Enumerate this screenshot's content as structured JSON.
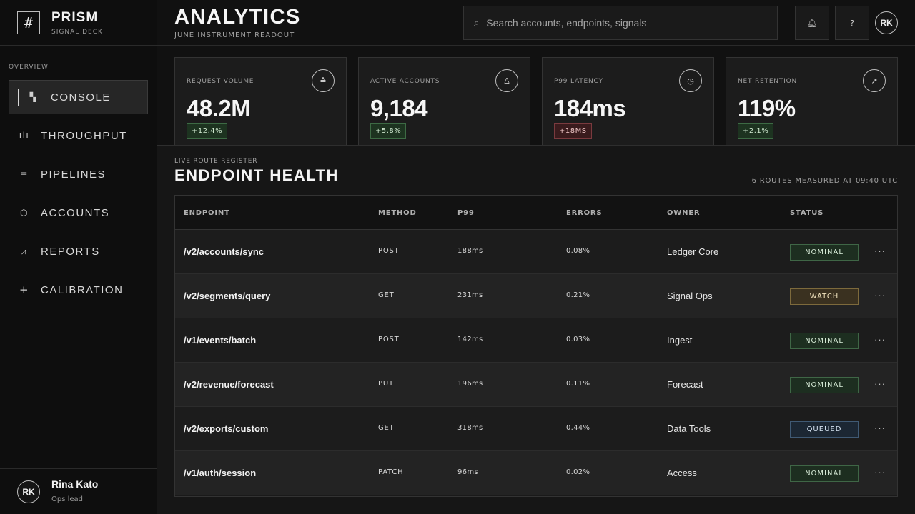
{
  "brand": {
    "name": "PRISM",
    "subtitle": "SIGNAL DECK"
  },
  "sidebar": {
    "section_label": "OVERVIEW",
    "items": [
      {
        "label": "CONSOLE",
        "icon": "grid-icon",
        "active": true
      },
      {
        "label": "THROUGHPUT",
        "icon": "bar-chart-icon",
        "active": false
      },
      {
        "label": "PIPELINES",
        "icon": "lines-icon",
        "active": false
      },
      {
        "label": "ACCOUNTS",
        "icon": "cube-icon",
        "active": false
      },
      {
        "label": "REPORTS",
        "icon": "trend-chart-icon",
        "active": false
      },
      {
        "label": "CALIBRATION",
        "icon": "plus-icon",
        "active": false
      }
    ]
  },
  "user": {
    "initials": "RK",
    "name": "Rina Kato",
    "role": "Ops lead"
  },
  "header": {
    "title": "ANALYTICS",
    "subtitle": "JUNE INSTRUMENT READOUT",
    "search_placeholder": "Search accounts, endpoints, signals",
    "avatar_initials": "RK"
  },
  "kpis": [
    {
      "label": "REQUEST VOLUME",
      "value": "48.2M",
      "delta": "+12.4%",
      "trend": "up",
      "icon": "stack-icon"
    },
    {
      "label": "ACTIVE ACCOUNTS",
      "value": "9,184",
      "delta": "+5.8%",
      "trend": "up",
      "icon": "user-icon"
    },
    {
      "label": "P99 LATENCY",
      "value": "184ms",
      "delta": "+18MS",
      "trend": "down",
      "icon": "clock-icon"
    },
    {
      "label": "NET RETENTION",
      "value": "119%",
      "delta": "+2.1%",
      "trend": "up",
      "icon": "trend-up-icon"
    }
  ],
  "section": {
    "eyebrow": "LIVE ROUTE REGISTER",
    "title": "ENDPOINT HEALTH",
    "meta": "6 ROUTES MEASURED AT 09:40 UTC"
  },
  "table": {
    "columns": [
      "ENDPOINT",
      "METHOD",
      "P99",
      "ERRORS",
      "OWNER",
      "STATUS"
    ],
    "rows": [
      {
        "endpoint": "/v2/accounts/sync",
        "method": "POST",
        "p99": "188ms",
        "errors": "0.08%",
        "owner": "Ledger Core",
        "status": "NOMINAL",
        "status_type": "nominal"
      },
      {
        "endpoint": "/v2/segments/query",
        "method": "GET",
        "p99": "231ms",
        "errors": "0.21%",
        "owner": "Signal Ops",
        "status": "WATCH",
        "status_type": "watch"
      },
      {
        "endpoint": "/v1/events/batch",
        "method": "POST",
        "p99": "142ms",
        "errors": "0.03%",
        "owner": "Ingest",
        "status": "NOMINAL",
        "status_type": "nominal"
      },
      {
        "endpoint": "/v2/revenue/forecast",
        "method": "PUT",
        "p99": "196ms",
        "errors": "0.11%",
        "owner": "Forecast",
        "status": "NOMINAL",
        "status_type": "nominal"
      },
      {
        "endpoint": "/v2/exports/custom",
        "method": "GET",
        "p99": "318ms",
        "errors": "0.44%",
        "owner": "Data Tools",
        "status": "QUEUED",
        "status_type": "queued"
      },
      {
        "endpoint": "/v1/auth/session",
        "method": "PATCH",
        "p99": "96ms",
        "errors": "0.02%",
        "owner": "Access",
        "status": "NOMINAL",
        "status_type": "nominal"
      }
    ]
  },
  "colors": {
    "background": "#111111",
    "nominal": "#3f6646",
    "watch": "#7d6a3c",
    "queued": "#405a74",
    "negative": "#7a3a3e"
  }
}
